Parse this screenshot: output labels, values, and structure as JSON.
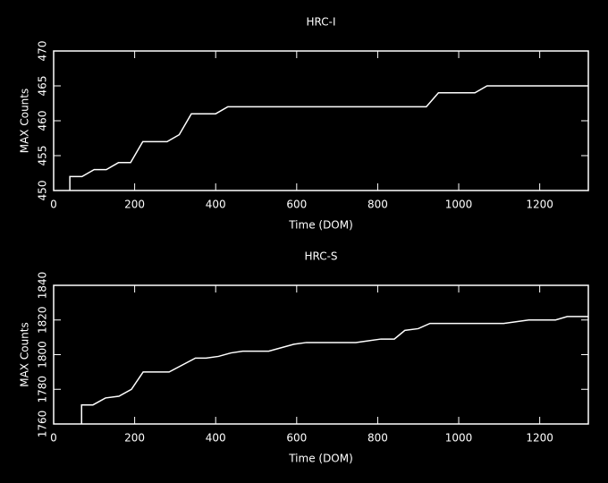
{
  "chart_data": [
    {
      "type": "line",
      "title": "HRC-I",
      "xlabel": "Time (DOM)",
      "ylabel": "MAX Counts",
      "x": [
        40,
        40,
        70,
        100,
        130,
        160,
        190,
        220,
        280,
        310,
        340,
        400,
        430,
        920,
        950,
        1040,
        1070,
        1320
      ],
      "values": [
        450,
        452,
        452,
        453,
        453,
        454,
        454,
        457,
        457,
        458,
        461,
        461,
        462,
        462,
        464,
        464,
        465,
        465
      ],
      "color": "#ffffff",
      "xlim": [
        0,
        1320
      ],
      "xticks": [
        0,
        200,
        400,
        600,
        800,
        1000,
        1200
      ],
      "ylim": [
        450,
        470
      ],
      "yticks": [
        450,
        455,
        460,
        465,
        470
      ]
    },
    {
      "type": "line",
      "title": "HRC-S",
      "xlabel": "Time (DOM)",
      "ylabel": "MAX Counts",
      "x": [
        69,
        69,
        97,
        128,
        161,
        192,
        221,
        285,
        350,
        376,
        407,
        438,
        467,
        531,
        593,
        624,
        746,
        808,
        841,
        867,
        900,
        929,
        1111,
        1173,
        1239,
        1268,
        1320
      ],
      "values": [
        1760,
        1771,
        1771,
        1775,
        1776,
        1780,
        1790,
        1790,
        1798,
        1798,
        1799,
        1801,
        1802,
        1802,
        1806,
        1807,
        1807,
        1809,
        1809,
        1814,
        1815,
        1818,
        1818,
        1820,
        1820,
        1822,
        1822
      ],
      "color": "#ffffff",
      "xlim": [
        0,
        1320
      ],
      "xticks": [
        0,
        200,
        400,
        600,
        800,
        1000,
        1200
      ],
      "ylim": [
        1760,
        1840
      ],
      "yticks": [
        1760,
        1780,
        1800,
        1820,
        1840
      ]
    }
  ]
}
